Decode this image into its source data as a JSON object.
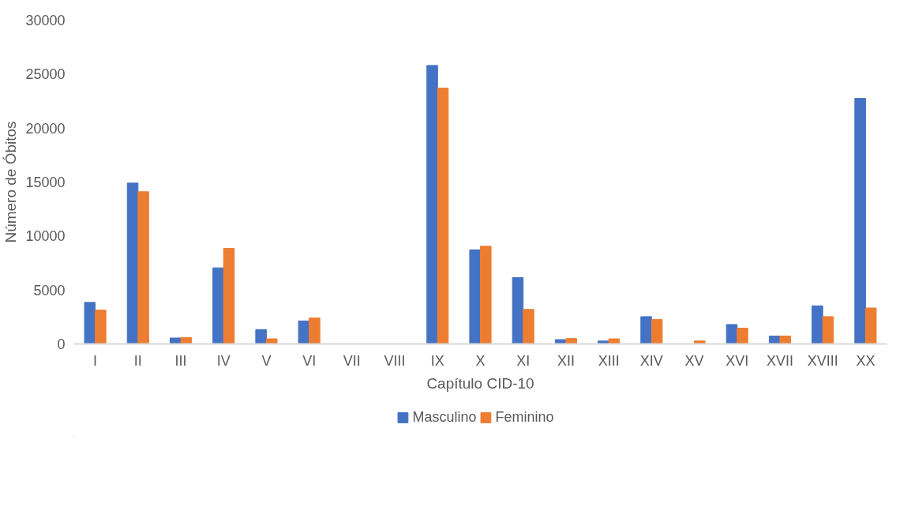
{
  "chart_data": {
    "type": "bar",
    "xlabel": "Capítulo CID-10",
    "ylabel": "Número de Óbitos",
    "categories": [
      "I",
      "II",
      "III",
      "IV",
      "V",
      "VI",
      "VII",
      "VIII",
      "IX",
      "X",
      "XI",
      "XII",
      "XIII",
      "XIV",
      "XV",
      "XVI",
      "XVII",
      "XVIII",
      "XX"
    ],
    "series": [
      {
        "name": "Masculino",
        "color": "#4472c4",
        "values": [
          3850,
          14900,
          550,
          7050,
          1330,
          2130,
          0,
          0,
          25800,
          8720,
          6150,
          400,
          270,
          2530,
          0,
          1800,
          730,
          3530,
          22750
        ]
      },
      {
        "name": "Feminino",
        "color": "#ed7d31",
        "values": [
          3130,
          14100,
          600,
          8850,
          470,
          2400,
          0,
          0,
          23700,
          9050,
          3200,
          500,
          470,
          2260,
          270,
          1460,
          730,
          2530,
          3330
        ]
      }
    ],
    "ylim": [
      0,
      30000
    ],
    "yticks": [
      0,
      5000,
      10000,
      15000,
      20000,
      25000,
      30000
    ],
    "grid": false,
    "legend": "bottom"
  }
}
